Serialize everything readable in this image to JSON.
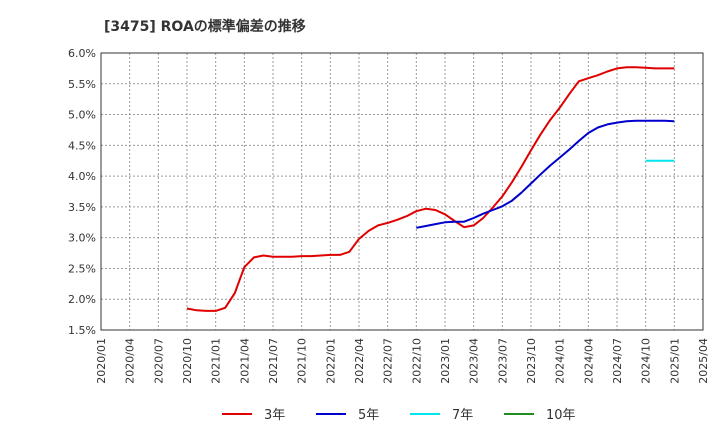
{
  "chart_data": {
    "type": "line",
    "title": "[3475]  ROAの標準偏差の推移",
    "xlabel": "",
    "ylabel": "",
    "ylim": [
      1.5,
      6.0
    ],
    "y_ticks": [
      "1.5%",
      "2.0%",
      "2.5%",
      "3.0%",
      "3.5%",
      "4.0%",
      "4.5%",
      "5.0%",
      "5.5%",
      "6.0%"
    ],
    "x_ticks": [
      "2020/01",
      "2020/04",
      "2020/07",
      "2020/10",
      "2021/01",
      "2021/04",
      "2021/07",
      "2021/10",
      "2022/01",
      "2022/04",
      "2022/07",
      "2022/10",
      "2023/01",
      "2023/04",
      "2023/07",
      "2023/10",
      "2024/01",
      "2024/04",
      "2024/07",
      "2024/10",
      "2025/01",
      "2025/04"
    ],
    "grid": true,
    "legend_position": "bottom",
    "series": [
      {
        "name": "3年",
        "color": "#e00000",
        "points": [
          [
            "2020/10",
            1.85
          ],
          [
            "2020/11",
            1.82
          ],
          [
            "2020/12",
            1.81
          ],
          [
            "2021/01",
            1.81
          ],
          [
            "2021/02",
            1.86
          ],
          [
            "2021/03",
            2.1
          ],
          [
            "2021/04",
            2.52
          ],
          [
            "2021/05",
            2.68
          ],
          [
            "2021/06",
            2.71
          ],
          [
            "2021/07",
            2.69
          ],
          [
            "2021/08",
            2.69
          ],
          [
            "2021/09",
            2.69
          ],
          [
            "2021/10",
            2.7
          ],
          [
            "2021/11",
            2.7
          ],
          [
            "2021/12",
            2.71
          ],
          [
            "2022/01",
            2.72
          ],
          [
            "2022/02",
            2.72
          ],
          [
            "2022/03",
            2.77
          ],
          [
            "2022/04",
            2.98
          ],
          [
            "2022/05",
            3.11
          ],
          [
            "2022/06",
            3.2
          ],
          [
            "2022/07",
            3.24
          ],
          [
            "2022/08",
            3.29
          ],
          [
            "2022/09",
            3.35
          ],
          [
            "2022/10",
            3.43
          ],
          [
            "2022/11",
            3.47
          ],
          [
            "2022/12",
            3.45
          ],
          [
            "2023/01",
            3.38
          ],
          [
            "2023/02",
            3.27
          ],
          [
            "2023/03",
            3.17
          ],
          [
            "2023/04",
            3.2
          ],
          [
            "2023/05",
            3.32
          ],
          [
            "2023/06",
            3.49
          ],
          [
            "2023/07",
            3.67
          ],
          [
            "2023/08",
            3.9
          ],
          [
            "2023/09",
            4.15
          ],
          [
            "2023/10",
            4.42
          ],
          [
            "2023/11",
            4.68
          ],
          [
            "2023/12",
            4.91
          ],
          [
            "2024/01",
            5.11
          ],
          [
            "2024/02",
            5.33
          ],
          [
            "2024/03",
            5.54
          ],
          [
            "2024/04",
            5.59
          ],
          [
            "2024/05",
            5.64
          ],
          [
            "2024/06",
            5.7
          ],
          [
            "2024/07",
            5.75
          ],
          [
            "2024/08",
            5.77
          ],
          [
            "2024/09",
            5.77
          ],
          [
            "2024/10",
            5.76
          ],
          [
            "2024/11",
            5.75
          ],
          [
            "2024/12",
            5.75
          ],
          [
            "2025/01",
            5.75
          ]
        ]
      },
      {
        "name": "5年",
        "color": "#0000cc",
        "points": [
          [
            "2022/10",
            3.16
          ],
          [
            "2022/11",
            3.19
          ],
          [
            "2022/12",
            3.22
          ],
          [
            "2023/01",
            3.25
          ],
          [
            "2023/02",
            3.26
          ],
          [
            "2023/03",
            3.26
          ],
          [
            "2023/04",
            3.32
          ],
          [
            "2023/05",
            3.39
          ],
          [
            "2023/06",
            3.45
          ],
          [
            "2023/07",
            3.51
          ],
          [
            "2023/08",
            3.6
          ],
          [
            "2023/09",
            3.73
          ],
          [
            "2023/10",
            3.88
          ],
          [
            "2023/11",
            4.03
          ],
          [
            "2023/12",
            4.17
          ],
          [
            "2024/01",
            4.3
          ],
          [
            "2024/02",
            4.43
          ],
          [
            "2024/03",
            4.57
          ],
          [
            "2024/04",
            4.7
          ],
          [
            "2024/05",
            4.79
          ],
          [
            "2024/06",
            4.84
          ],
          [
            "2024/07",
            4.87
          ],
          [
            "2024/08",
            4.89
          ],
          [
            "2024/09",
            4.9
          ],
          [
            "2024/10",
            4.9
          ],
          [
            "2024/11",
            4.9
          ],
          [
            "2024/12",
            4.9
          ],
          [
            "2025/01",
            4.89
          ]
        ]
      },
      {
        "name": "7年",
        "color": "#00e5ee",
        "points": [
          [
            "2024/10",
            4.25
          ],
          [
            "2024/11",
            4.25
          ],
          [
            "2024/12",
            4.25
          ],
          [
            "2025/01",
            4.25
          ]
        ]
      },
      {
        "name": "10年",
        "color": "#228b22",
        "points": []
      }
    ]
  }
}
